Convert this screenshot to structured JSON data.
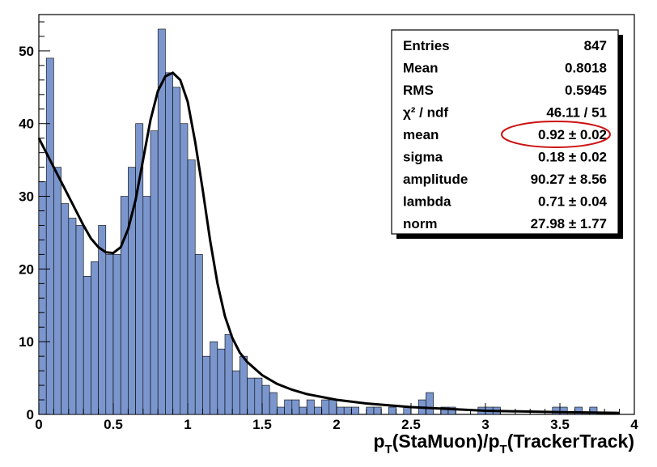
{
  "chart_data": {
    "type": "bar",
    "xlim": [
      0,
      4
    ],
    "ylim": [
      0,
      55
    ],
    "bin_width": 0.05,
    "x_ticks": [
      "0",
      "0.5",
      "1",
      "1.5",
      "2",
      "2.5",
      "3",
      "3.5",
      "4"
    ],
    "y_ticks": [
      "0",
      "10",
      "20",
      "30",
      "40",
      "50"
    ],
    "x_tick_values": [
      0,
      0.5,
      1,
      1.5,
      2,
      2.5,
      3,
      3.5,
      4
    ],
    "y_tick_values": [
      0,
      10,
      20,
      30,
      40,
      50
    ],
    "xlabel": {
      "p1": "p",
      "s1": "T",
      "m1": "(StaMuon)/p",
      "s2": "T",
      "m2": "(TrackerTrack)"
    },
    "histogram": [
      32,
      49,
      34,
      29,
      27,
      26,
      19,
      21,
      26,
      22,
      22,
      30,
      34,
      40,
      30,
      39,
      53,
      47,
      45,
      40,
      35,
      22,
      8,
      10,
      9,
      11,
      6,
      8,
      5,
      5,
      4,
      3,
      1,
      2,
      2,
      1,
      2,
      1,
      2,
      2,
      1,
      1,
      1,
      0,
      1,
      1,
      0,
      1,
      0,
      1,
      0,
      2,
      3,
      0,
      1,
      1,
      0,
      0,
      0,
      1,
      1,
      1,
      0,
      0,
      0,
      0,
      0,
      0,
      0,
      1,
      1,
      0,
      1,
      0,
      1,
      0,
      0,
      0,
      0,
      0
    ],
    "fit_curve": {
      "x": [
        0.0,
        0.05,
        0.1,
        0.15,
        0.2,
        0.25,
        0.3,
        0.35,
        0.4,
        0.45,
        0.5,
        0.55,
        0.6,
        0.65,
        0.7,
        0.75,
        0.8,
        0.85,
        0.9,
        0.95,
        1.0,
        1.05,
        1.1,
        1.15,
        1.2,
        1.25,
        1.3,
        1.35,
        1.4,
        1.5,
        1.6,
        1.7,
        1.8,
        2.0,
        2.2,
        2.5,
        3.0,
        3.5,
        3.9
      ],
      "y": [
        38,
        36,
        34,
        32,
        30,
        28,
        26,
        24.2,
        23,
        22.3,
        22.2,
        23,
        25.5,
        29.5,
        35,
        40.5,
        44.5,
        46.5,
        47,
        46,
        43,
        37.5,
        31,
        24,
        18,
        13.5,
        10.5,
        8.5,
        7.2,
        5.4,
        4.2,
        3.4,
        2.8,
        2.0,
        1.5,
        1.0,
        0.5,
        0.3,
        0.2
      ]
    },
    "stats_box": [
      {
        "label": "Entries",
        "value": "847"
      },
      {
        "label": "Mean",
        "value": "0.8018"
      },
      {
        "label": "RMS",
        "value": "0.5945"
      },
      {
        "label": "χ² / ndf",
        "value": "46.11 / 51"
      },
      {
        "label": "mean",
        "value": "0.92 ± 0.02"
      },
      {
        "label": "sigma",
        "value": "0.18 ± 0.02"
      },
      {
        "label": "amplitude",
        "value": "90.27 ± 8.56"
      },
      {
        "label": "lambda",
        "value": "0.71 ± 0.04"
      },
      {
        "label": "norm",
        "value": "27.98 ± 1.77"
      }
    ],
    "highlighted_row": "mean",
    "colors": {
      "fill": "#7b96cd",
      "bar_outline": "#000000",
      "fit_line": "#000000",
      "highlight_ellipse": "#cc1111"
    },
    "grid": false,
    "stats_placement": "top-right"
  }
}
